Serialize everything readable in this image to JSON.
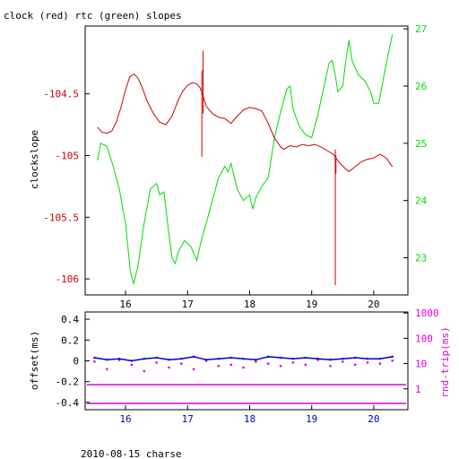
{
  "title": "clock (red) rtc (green) slopes",
  "footer": "2010-08-15 charse",
  "colors": {
    "clock": "#cc0000",
    "rtc": "#00dd00",
    "offset": "#0000cc",
    "rtt": "#dd00dd",
    "text": "#000000"
  },
  "chart_data": [
    {
      "type": "line",
      "title": "clock (red) rtc (green) slopes",
      "ylabel": "clockslope",
      "xlim": [
        15.35,
        20.55
      ],
      "ylim": [
        -106.13,
        -103.95
      ],
      "y2lim": [
        22.35,
        27.05
      ],
      "grid": false,
      "x_ticks": [
        "16",
        "17",
        "18",
        "19",
        "20"
      ],
      "y_ticks": [
        "-104.5",
        "-105",
        "-105.5",
        "-106"
      ],
      "y2_ticks": [
        "23",
        "24",
        "25",
        "26",
        "27"
      ],
      "series": [
        {
          "name": "clock (red)",
          "axis": "left",
          "points": [
            [
              15.55,
              -104.77
            ],
            [
              15.62,
              -104.81
            ],
            [
              15.7,
              -104.82
            ],
            [
              15.78,
              -104.8
            ],
            [
              15.85,
              -104.73
            ],
            [
              15.92,
              -104.62
            ],
            [
              16.0,
              -104.47
            ],
            [
              16.07,
              -104.36
            ],
            [
              16.14,
              -104.34
            ],
            [
              16.2,
              -104.37
            ],
            [
              16.27,
              -104.45
            ],
            [
              16.35,
              -104.56
            ],
            [
              16.45,
              -104.66
            ],
            [
              16.55,
              -104.73
            ],
            [
              16.65,
              -104.75
            ],
            [
              16.75,
              -104.68
            ],
            [
              16.85,
              -104.55
            ],
            [
              16.92,
              -104.48
            ],
            [
              17.0,
              -104.43
            ],
            [
              17.08,
              -104.41
            ],
            [
              17.15,
              -104.42
            ],
            [
              17.2,
              -104.45
            ],
            [
              17.24,
              -104.5
            ],
            [
              17.3,
              -104.6
            ],
            [
              17.4,
              -104.66
            ],
            [
              17.5,
              -104.69
            ],
            [
              17.6,
              -104.7
            ],
            [
              17.7,
              -104.74
            ],
            [
              17.8,
              -104.68
            ],
            [
              17.9,
              -104.63
            ],
            [
              18.0,
              -104.61
            ],
            [
              18.1,
              -104.62
            ],
            [
              18.2,
              -104.64
            ],
            [
              18.3,
              -104.74
            ],
            [
              18.4,
              -104.86
            ],
            [
              18.5,
              -104.93
            ],
            [
              18.55,
              -104.95
            ],
            [
              18.65,
              -104.92
            ],
            [
              18.75,
              -104.93
            ],
            [
              18.85,
              -104.91
            ],
            [
              18.95,
              -104.92
            ],
            [
              19.05,
              -104.91
            ],
            [
              19.15,
              -104.93
            ],
            [
              19.25,
              -104.96
            ],
            [
              19.35,
              -104.99
            ],
            [
              19.45,
              -105.06
            ],
            [
              19.55,
              -105.11
            ],
            [
              19.6,
              -105.13
            ],
            [
              19.7,
              -105.09
            ],
            [
              19.8,
              -105.05
            ],
            [
              19.9,
              -105.03
            ],
            [
              20.0,
              -105.02
            ],
            [
              20.1,
              -104.99
            ],
            [
              20.2,
              -105.02
            ],
            [
              20.3,
              -105.09
            ]
          ],
          "spikes": [
            [
              17.23,
              -104.31,
              -105.01
            ],
            [
              17.25,
              -104.15,
              -104.66
            ],
            [
              19.38,
              -104.95,
              -106.05
            ],
            [
              19.39,
              -105.0,
              -105.15
            ]
          ]
        },
        {
          "name": "rtc (green)",
          "axis": "right",
          "points": [
            [
              15.55,
              24.7
            ],
            [
              15.6,
              25.0
            ],
            [
              15.7,
              24.95
            ],
            [
              15.8,
              24.6
            ],
            [
              15.9,
              24.2
            ],
            [
              16.0,
              23.6
            ],
            [
              16.08,
              22.75
            ],
            [
              16.13,
              22.55
            ],
            [
              16.2,
              22.85
            ],
            [
              16.3,
              23.6
            ],
            [
              16.4,
              24.2
            ],
            [
              16.5,
              24.3
            ],
            [
              16.55,
              24.1
            ],
            [
              16.62,
              24.15
            ],
            [
              16.7,
              23.4
            ],
            [
              16.75,
              23.0
            ],
            [
              16.8,
              22.9
            ],
            [
              16.85,
              23.1
            ],
            [
              16.95,
              23.3
            ],
            [
              17.05,
              23.2
            ],
            [
              17.15,
              22.95
            ],
            [
              17.22,
              23.3
            ],
            [
              17.3,
              23.6
            ],
            [
              17.4,
              24.0
            ],
            [
              17.5,
              24.4
            ],
            [
              17.6,
              24.6
            ],
            [
              17.65,
              24.5
            ],
            [
              17.7,
              24.65
            ],
            [
              17.8,
              24.2
            ],
            [
              17.9,
              24.0
            ],
            [
              18.0,
              24.1
            ],
            [
              18.05,
              23.85
            ],
            [
              18.1,
              24.05
            ],
            [
              18.2,
              24.25
            ],
            [
              18.3,
              24.4
            ],
            [
              18.4,
              25.1
            ],
            [
              18.5,
              25.55
            ],
            [
              18.6,
              25.95
            ],
            [
              18.65,
              26.0
            ],
            [
              18.7,
              25.6
            ],
            [
              18.8,
              25.3
            ],
            [
              18.9,
              25.15
            ],
            [
              19.0,
              25.1
            ],
            [
              19.05,
              25.3
            ],
            [
              19.1,
              25.5
            ],
            [
              19.2,
              26.0
            ],
            [
              19.28,
              26.4
            ],
            [
              19.33,
              26.45
            ],
            [
              19.38,
              26.2
            ],
            [
              19.42,
              25.9
            ],
            [
              19.5,
              26.0
            ],
            [
              19.55,
              26.45
            ],
            [
              19.6,
              26.8
            ],
            [
              19.65,
              26.45
            ],
            [
              19.75,
              26.2
            ],
            [
              19.85,
              26.1
            ],
            [
              19.95,
              25.9
            ],
            [
              20.0,
              25.7
            ],
            [
              20.08,
              25.7
            ],
            [
              20.15,
              26.1
            ],
            [
              20.22,
              26.5
            ],
            [
              20.3,
              26.9
            ]
          ]
        }
      ]
    },
    {
      "type": "scatter",
      "ylabel": "offset(ms)",
      "y2label": "rnd-trip(ms)",
      "xlim": [
        15.35,
        20.55
      ],
      "ylim": [
        -0.47,
        0.47
      ],
      "y2_scale": "log",
      "y2lim": [
        0.15,
        1100
      ],
      "grid": false,
      "x_ticks": [
        "16",
        "17",
        "18",
        "19",
        "20"
      ],
      "y_ticks": [
        "0.4",
        "0.2",
        "0",
        "-0.2",
        "-0.4"
      ],
      "y2_ticks": [
        "1000",
        "100",
        "10",
        "1"
      ],
      "series": [
        {
          "name": "offset",
          "axis": "left",
          "points": [
            [
              15.5,
              0.03
            ],
            [
              15.7,
              0.01
            ],
            [
              15.9,
              0.02
            ],
            [
              16.1,
              0.0
            ],
            [
              16.3,
              0.02
            ],
            [
              16.5,
              0.03
            ],
            [
              16.7,
              0.01
            ],
            [
              16.9,
              0.02
            ],
            [
              17.1,
              0.04
            ],
            [
              17.3,
              0.01
            ],
            [
              17.5,
              0.02
            ],
            [
              17.7,
              0.03
            ],
            [
              17.9,
              0.02
            ],
            [
              18.1,
              0.01
            ],
            [
              18.3,
              0.04
            ],
            [
              18.5,
              0.03
            ],
            [
              18.7,
              0.02
            ],
            [
              18.9,
              0.03
            ],
            [
              19.1,
              0.02
            ],
            [
              19.3,
              0.01
            ],
            [
              19.5,
              0.02
            ],
            [
              19.7,
              0.03
            ],
            [
              19.9,
              0.02
            ],
            [
              20.1,
              0.02
            ],
            [
              20.3,
              0.04
            ]
          ]
        },
        {
          "name": "rnd-trip",
          "axis": "right",
          "points": [
            [
              15.5,
              12
            ],
            [
              15.7,
              6
            ],
            [
              15.9,
              14
            ],
            [
              16.1,
              9
            ],
            [
              16.3,
              5
            ],
            [
              16.5,
              11
            ],
            [
              16.7,
              7
            ],
            [
              16.9,
              10
            ],
            [
              17.1,
              6
            ],
            [
              17.3,
              13
            ],
            [
              17.5,
              8
            ],
            [
              17.7,
              9
            ],
            [
              17.9,
              7
            ],
            [
              18.1,
              12
            ],
            [
              18.3,
              10
            ],
            [
              18.5,
              8
            ],
            [
              18.7,
              11
            ],
            [
              18.9,
              9
            ],
            [
              19.1,
              14
            ],
            [
              19.3,
              8
            ],
            [
              19.5,
              12
            ],
            [
              19.7,
              9
            ],
            [
              19.9,
              11
            ],
            [
              20.1,
              10
            ],
            [
              20.3,
              13
            ]
          ]
        }
      ],
      "lines": [
        {
          "axis": "left",
          "value": -0.23,
          "color": "rtt"
        },
        {
          "axis": "left",
          "value": -0.41,
          "color": "rtt"
        }
      ]
    }
  ]
}
